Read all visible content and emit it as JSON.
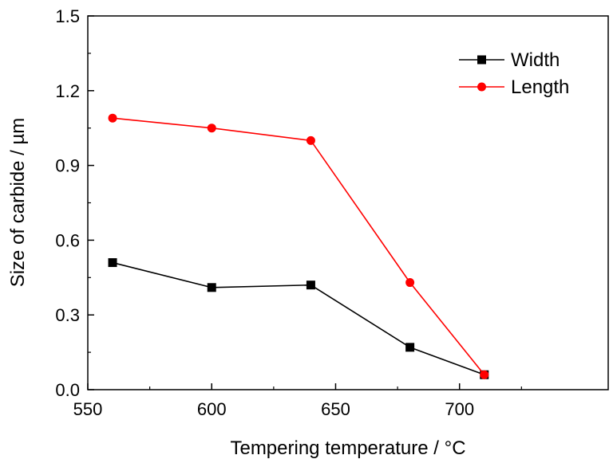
{
  "chart_data": {
    "type": "line",
    "title": "",
    "xlabel": "Tempering temperature / °C",
    "ylabel": "Size of carbide / µm",
    "xlim": [
      550,
      760
    ],
    "ylim": [
      0,
      1.5
    ],
    "xticks": [
      550,
      600,
      650,
      700
    ],
    "yticks": [
      0.0,
      0.3,
      0.6,
      0.9,
      1.2,
      1.5
    ],
    "xtick_labels": [
      "550",
      "600",
      "650",
      "700"
    ],
    "ytick_labels": [
      "0.0",
      "0.3",
      "0.6",
      "0.9",
      "1.2",
      "1.5"
    ],
    "x": [
      560,
      600,
      640,
      680,
      710
    ],
    "series": [
      {
        "name": "Width",
        "color": "#000000",
        "marker": "square",
        "values": [
          0.51,
          0.41,
          0.42,
          0.17,
          0.06
        ]
      },
      {
        "name": "Length",
        "color": "#ff0000",
        "marker": "circle",
        "values": [
          1.09,
          1.05,
          1.0,
          0.43,
          0.06
        ]
      }
    ],
    "legend_position": "top-right",
    "grid": false
  }
}
